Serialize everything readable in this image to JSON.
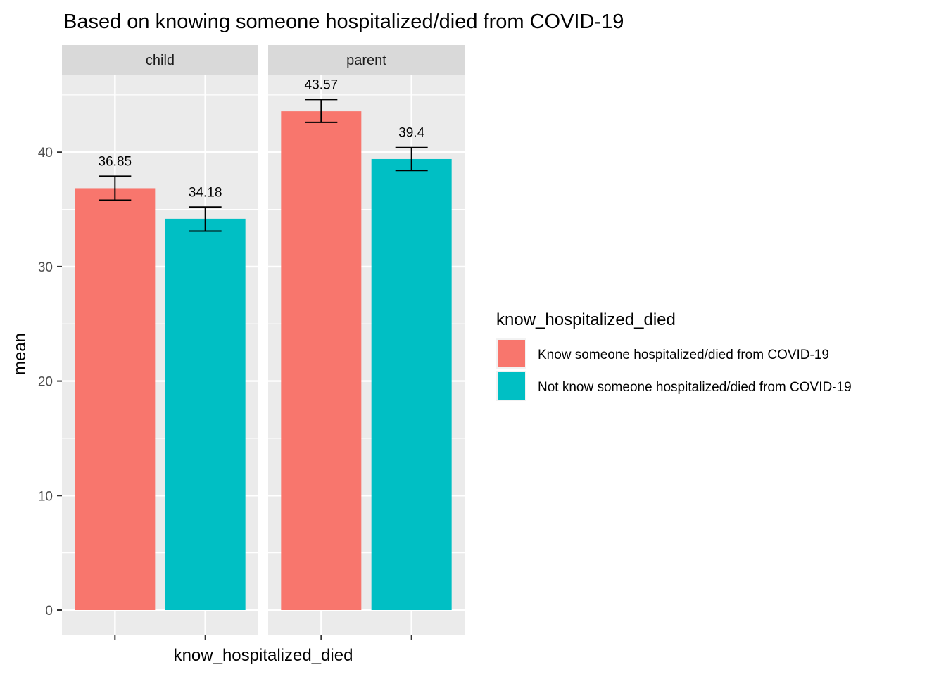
{
  "chart_data": {
    "type": "bar",
    "title": "Based on knowing someone hospitalized/died from COVID-19",
    "xlabel": "know_hospitalized_died",
    "ylabel": "mean",
    "ylim": [
      0,
      47
    ],
    "y_ticks": [
      0,
      10,
      20,
      30,
      40
    ],
    "grid": true,
    "legend_position": "right",
    "legend": {
      "title": "know_hospitalized_died",
      "entries": [
        {
          "label": "Know someone hospitalized/died from COVID-19",
          "color": "#F8766D"
        },
        {
          "label": "Not know someone hospitalized/died from COVID-19",
          "color": "#00BFC4"
        }
      ]
    },
    "facets": [
      {
        "name": "child",
        "bars": [
          {
            "group": "Know someone hospitalized/died from COVID-19",
            "value": 36.85,
            "label": "36.85",
            "error_low": 35.8,
            "error_high": 37.9
          },
          {
            "group": "Not know someone hospitalized/died from COVID-19",
            "value": 34.18,
            "label": "34.18",
            "error_low": 33.1,
            "error_high": 35.2
          }
        ]
      },
      {
        "name": "parent",
        "bars": [
          {
            "group": "Know someone hospitalized/died from COVID-19",
            "value": 43.57,
            "label": "43.57",
            "error_low": 42.6,
            "error_high": 44.6
          },
          {
            "group": "Not know someone hospitalized/died from COVID-19",
            "value": 39.4,
            "label": "39.4",
            "error_low": 38.4,
            "error_high": 40.4
          }
        ]
      }
    ]
  }
}
